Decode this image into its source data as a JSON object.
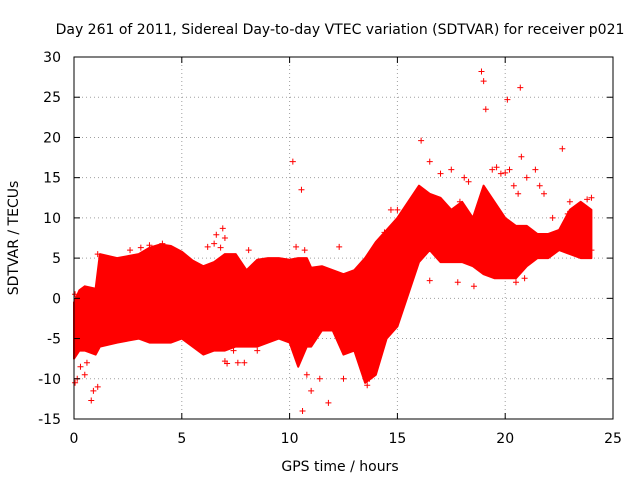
{
  "chart_data": {
    "type": "scatter",
    "title": "Day 261 of 2011, Sidereal Day-to-day VTEC variation (SDTVAR) for receiver p021",
    "xlabel": "GPS time / hours",
    "ylabel": "SDTVAR / TECUs",
    "xlim": [
      0,
      25
    ],
    "ylim": [
      -15,
      30
    ],
    "x_ticks": [
      0,
      5,
      10,
      15,
      20,
      25
    ],
    "y_ticks": [
      -15,
      -10,
      -5,
      0,
      5,
      10,
      15,
      20,
      25,
      30
    ],
    "grid": true,
    "marker": "+",
    "color": "#ff0000",
    "band_x": [
      0.0,
      0.25,
      0.5,
      1.0,
      1.2,
      2.0,
      3.0,
      3.5,
      4.0,
      4.5,
      5.0,
      5.5,
      6.0,
      6.5,
      7.0,
      7.5,
      8.0,
      8.5,
      9.0,
      9.5,
      10.0,
      10.4,
      10.8,
      11.0,
      11.5,
      12.0,
      12.5,
      13.0,
      13.5,
      14.0,
      14.5,
      15.0,
      15.5,
      16.0,
      16.5,
      17.0,
      17.5,
      18.0,
      18.5,
      19.0,
      19.5,
      20.0,
      20.5,
      21.0,
      21.5,
      22.0,
      22.5,
      23.0,
      23.5,
      24.0
    ],
    "band_upper": [
      -0.5,
      1.0,
      1.5,
      1.2,
      5.5,
      5.0,
      5.5,
      6.3,
      6.7,
      6.5,
      5.8,
      4.7,
      4.0,
      4.5,
      5.5,
      5.5,
      3.5,
      4.8,
      5.0,
      5.0,
      4.8,
      5.0,
      5.0,
      3.8,
      4.0,
      3.5,
      3.0,
      3.5,
      5.0,
      7.0,
      8.5,
      10.0,
      12.0,
      14.0,
      13.0,
      12.5,
      11.0,
      12.0,
      10.0,
      14.0,
      12.0,
      10.0,
      9.0,
      9.0,
      8.0,
      8.0,
      8.5,
      11.0,
      12.0,
      11.0
    ],
    "band_lower": [
      -7.5,
      -6.5,
      -6.5,
      -7.0,
      -6.0,
      -5.5,
      -5.0,
      -5.5,
      -5.5,
      -5.5,
      -5.0,
      -6.0,
      -7.0,
      -6.5,
      -6.5,
      -6.0,
      -6.0,
      -6.0,
      -5.5,
      -5.0,
      -5.5,
      -8.5,
      -6.0,
      -6.0,
      -4.0,
      -4.0,
      -7.0,
      -6.5,
      -10.5,
      -9.5,
      -5.0,
      -3.5,
      0.5,
      4.5,
      6.0,
      4.5,
      4.5,
      4.5,
      4.0,
      3.0,
      2.5,
      2.5,
      2.5,
      4.0,
      5.0,
      5.0,
      6.0,
      5.5,
      5.0,
      5.0
    ],
    "scatter_points": [
      [
        0.05,
        -10.5
      ],
      [
        0.05,
        0.5
      ],
      [
        0.15,
        -10.0
      ],
      [
        0.3,
        -8.5
      ],
      [
        0.5,
        -9.5
      ],
      [
        0.6,
        -8.0
      ],
      [
        0.8,
        -12.7
      ],
      [
        0.9,
        -11.5
      ],
      [
        1.1,
        -11.0
      ],
      [
        1.1,
        5.5
      ],
      [
        1.25,
        4.5
      ],
      [
        2.6,
        6.0
      ],
      [
        3.1,
        6.3
      ],
      [
        3.5,
        6.6
      ],
      [
        4.1,
        6.8
      ],
      [
        4.1,
        6.2
      ],
      [
        6.2,
        6.4
      ],
      [
        6.5,
        6.8
      ],
      [
        6.6,
        7.9
      ],
      [
        6.8,
        6.3
      ],
      [
        6.9,
        8.7
      ],
      [
        7.0,
        7.5
      ],
      [
        7.0,
        -7.8
      ],
      [
        7.1,
        -8.1
      ],
      [
        7.4,
        -6.5
      ],
      [
        7.6,
        -8.0
      ],
      [
        7.9,
        -8.0
      ],
      [
        8.1,
        6.0
      ],
      [
        8.5,
        -6.5
      ],
      [
        10.15,
        17.0
      ],
      [
        10.3,
        6.4
      ],
      [
        10.55,
        13.5
      ],
      [
        10.7,
        6.0
      ],
      [
        10.6,
        -14.0
      ],
      [
        10.8,
        -9.5
      ],
      [
        11.0,
        -11.5
      ],
      [
        11.4,
        -10.0
      ],
      [
        11.8,
        -13.0
      ],
      [
        12.3,
        6.4
      ],
      [
        12.5,
        -10.0
      ],
      [
        13.6,
        -10.8
      ],
      [
        13.7,
        -10.0
      ],
      [
        14.4,
        8.2
      ],
      [
        14.7,
        11.0
      ],
      [
        15.0,
        11.0
      ],
      [
        15.3,
        9.0
      ],
      [
        16.1,
        19.6
      ],
      [
        16.5,
        17.0
      ],
      [
        16.5,
        2.2
      ],
      [
        17.0,
        15.5
      ],
      [
        17.5,
        16.0
      ],
      [
        17.8,
        2.0
      ],
      [
        17.9,
        12.0
      ],
      [
        18.1,
        15.0
      ],
      [
        18.3,
        14.5
      ],
      [
        18.55,
        1.5
      ],
      [
        18.9,
        28.2
      ],
      [
        19.0,
        27.0
      ],
      [
        19.1,
        23.5
      ],
      [
        19.4,
        16.0
      ],
      [
        19.6,
        16.3
      ],
      [
        19.8,
        15.5
      ],
      [
        20.0,
        15.6
      ],
      [
        20.1,
        24.7
      ],
      [
        20.2,
        16.0
      ],
      [
        20.4,
        14.0
      ],
      [
        20.5,
        2.0
      ],
      [
        20.6,
        13.0
      ],
      [
        20.7,
        26.2
      ],
      [
        20.75,
        17.6
      ],
      [
        20.9,
        2.5
      ],
      [
        21.0,
        15.0
      ],
      [
        21.4,
        16.0
      ],
      [
        21.6,
        14.0
      ],
      [
        21.8,
        13.0
      ],
      [
        22.2,
        10.0
      ],
      [
        22.65,
        18.6
      ],
      [
        22.9,
        10.5
      ],
      [
        23.0,
        12.0
      ],
      [
        23.3,
        11.0
      ],
      [
        23.8,
        12.3
      ],
      [
        23.9,
        10.0
      ],
      [
        24.0,
        6.0
      ],
      [
        24.0,
        12.5
      ]
    ]
  }
}
